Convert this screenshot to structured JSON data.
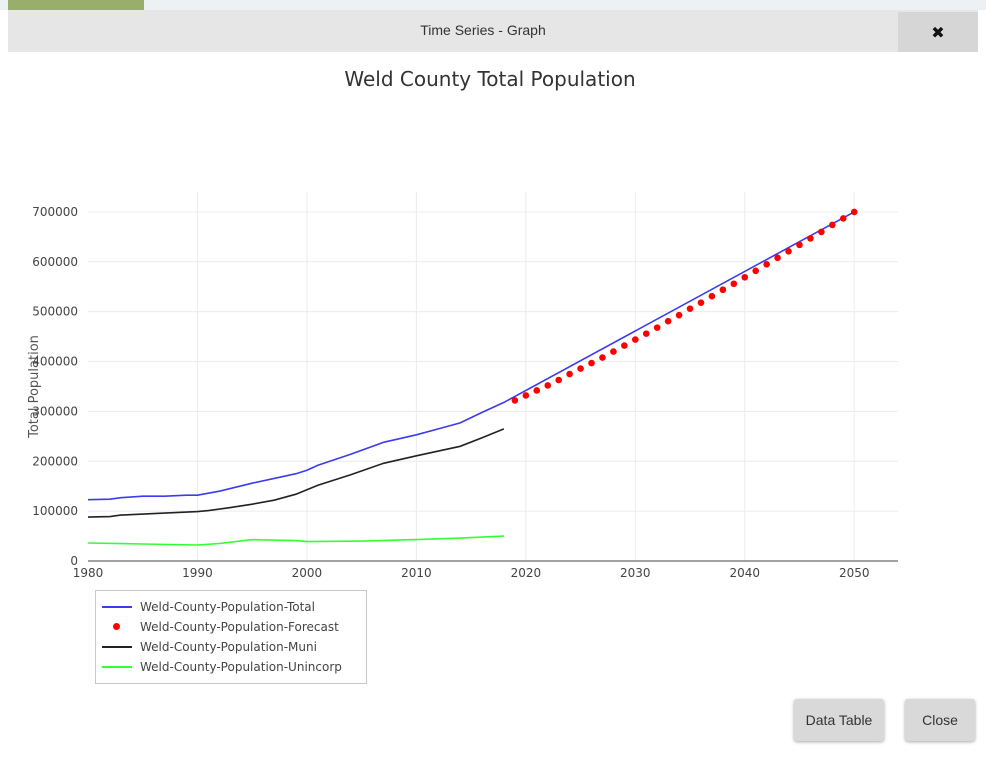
{
  "dialog": {
    "title": "Time Series - Graph",
    "close_icon_glyph": "✖",
    "buttons": {
      "data_table": "Data Table",
      "close": "Close"
    }
  },
  "chart_data": {
    "type": "line",
    "title": "Weld County Total Population",
    "xlabel": "",
    "ylabel": "Total Population",
    "xlim": [
      1980,
      2054
    ],
    "ylim": [
      0,
      740000
    ],
    "x_ticks": [
      "1980",
      "1990",
      "2000",
      "2010",
      "2020",
      "2030",
      "2040",
      "2050"
    ],
    "y_ticks": [
      "0",
      "100000",
      "200000",
      "300000",
      "400000",
      "500000",
      "600000",
      "700000"
    ],
    "grid": true,
    "legend_position": "bottom-left",
    "series": [
      {
        "name": "Weld-County-Population-Total",
        "color": "#3b3bf0",
        "mode": "line",
        "points": [
          [
            1980,
            123000
          ],
          [
            1982,
            124000
          ],
          [
            1983,
            127000
          ],
          [
            1985,
            130000
          ],
          [
            1987,
            130000
          ],
          [
            1989,
            132000
          ],
          [
            1990,
            132000
          ],
          [
            1992,
            140000
          ],
          [
            1995,
            156000
          ],
          [
            1999,
            175000
          ],
          [
            2000,
            182000
          ],
          [
            2001,
            192000
          ],
          [
            2004,
            214000
          ],
          [
            2007,
            238000
          ],
          [
            2010,
            253000
          ],
          [
            2012,
            265000
          ],
          [
            2014,
            277000
          ],
          [
            2016,
            298000
          ],
          [
            2018,
            318000
          ],
          [
            2050,
            700000
          ]
        ]
      },
      {
        "name": "Weld-County-Population-Forecast",
        "color": "#ff0000",
        "mode": "markers",
        "points": [
          [
            2019,
            322000
          ],
          [
            2020,
            332000
          ],
          [
            2021,
            342000
          ],
          [
            2022,
            352000
          ],
          [
            2023,
            363000
          ],
          [
            2024,
            375000
          ],
          [
            2025,
            386000
          ],
          [
            2026,
            397000
          ],
          [
            2027,
            408000
          ],
          [
            2028,
            420000
          ],
          [
            2029,
            432000
          ],
          [
            2030,
            444000
          ],
          [
            2031,
            456000
          ],
          [
            2032,
            468000
          ],
          [
            2033,
            481000
          ],
          [
            2034,
            493000
          ],
          [
            2035,
            506000
          ],
          [
            2036,
            518000
          ],
          [
            2037,
            531000
          ],
          [
            2038,
            544000
          ],
          [
            2039,
            556000
          ],
          [
            2040,
            569000
          ],
          [
            2041,
            582000
          ],
          [
            2042,
            595000
          ],
          [
            2043,
            608000
          ],
          [
            2044,
            621000
          ],
          [
            2045,
            634000
          ],
          [
            2046,
            647000
          ],
          [
            2047,
            660000
          ],
          [
            2048,
            674000
          ],
          [
            2049,
            687000
          ],
          [
            2050,
            700000
          ]
        ]
      },
      {
        "name": "Weld-County-Population-Muni",
        "color": "#222222",
        "mode": "line",
        "points": [
          [
            1980,
            88000
          ],
          [
            1982,
            89000
          ],
          [
            1983,
            92000
          ],
          [
            1986,
            95000
          ],
          [
            1990,
            99000
          ],
          [
            1991,
            101000
          ],
          [
            1993,
            107000
          ],
          [
            1995,
            114000
          ],
          [
            1997,
            122000
          ],
          [
            1999,
            134000
          ],
          [
            2001,
            152000
          ],
          [
            2004,
            173000
          ],
          [
            2007,
            196000
          ],
          [
            2010,
            211000
          ],
          [
            2014,
            230000
          ],
          [
            2016,
            247000
          ],
          [
            2018,
            265000
          ]
        ]
      },
      {
        "name": "Weld-County-Population-Unincorp",
        "color": "#33ff33",
        "mode": "line",
        "points": [
          [
            1980,
            36000
          ],
          [
            1985,
            34000
          ],
          [
            1990,
            32000
          ],
          [
            1992,
            35000
          ],
          [
            1995,
            43000
          ],
          [
            1999,
            41000
          ],
          [
            2000,
            39000
          ],
          [
            2005,
            40000
          ],
          [
            2010,
            43000
          ],
          [
            2014,
            46000
          ],
          [
            2016,
            48000
          ],
          [
            2018,
            50000
          ]
        ]
      }
    ]
  }
}
